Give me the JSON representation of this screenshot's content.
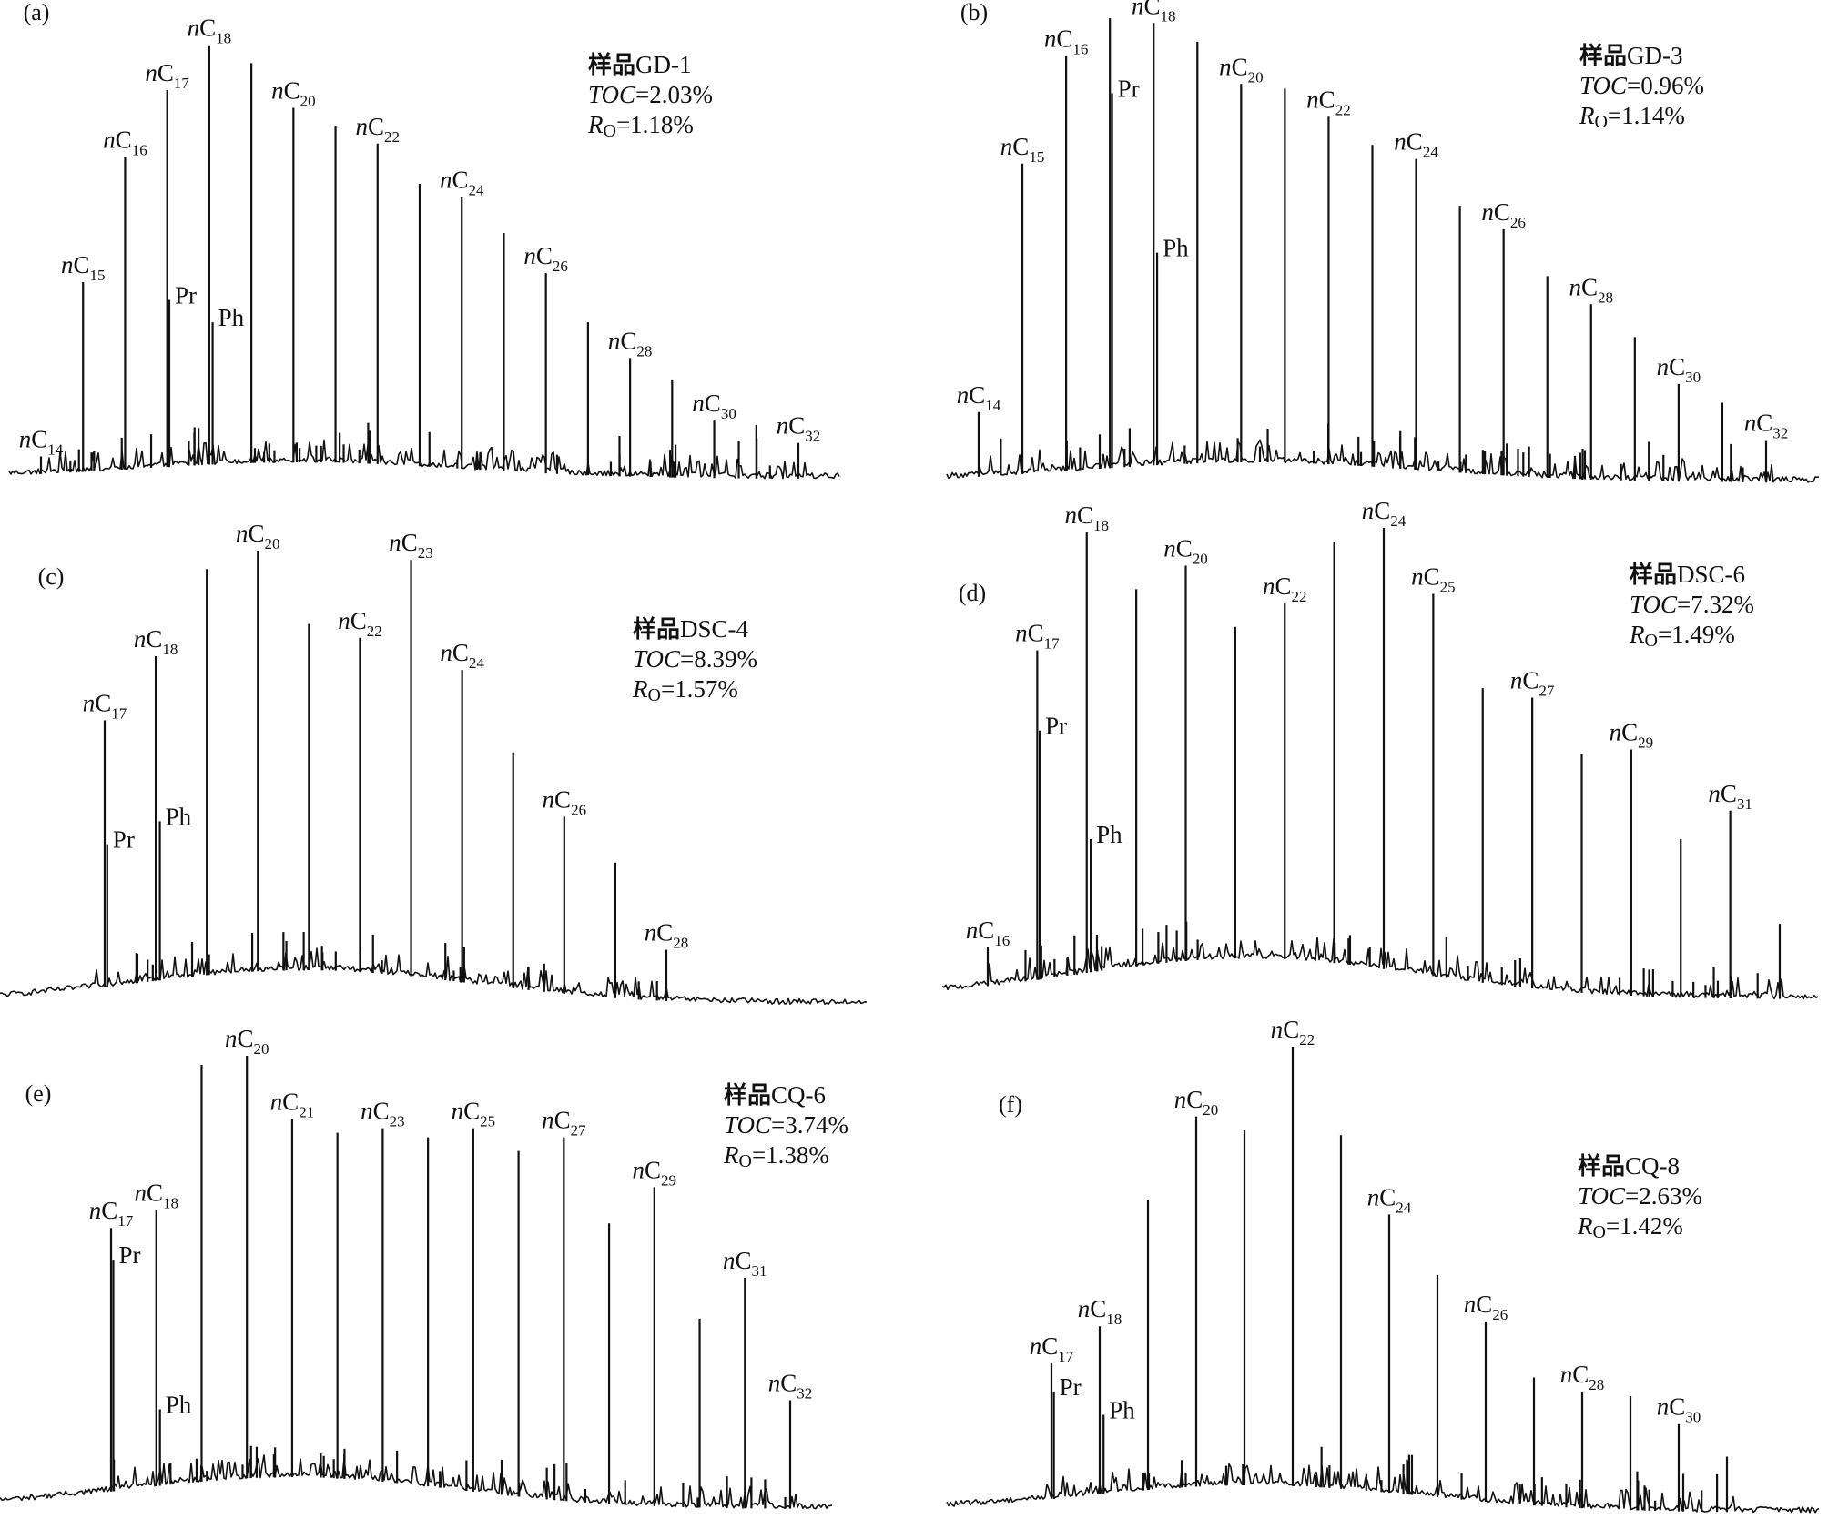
{
  "chart_data": [
    {
      "type": "line",
      "panel_label": "(a)",
      "sample_label": "样品GD-1",
      "toc_label": "TOC",
      "toc_value": "=2.03%",
      "ro_label": "R",
      "ro_sub": "O",
      "ro_value": "=1.18%",
      "peaks": [
        {
          "name": "nC14",
          "height": 0.05,
          "label": true
        },
        {
          "name": "nC15",
          "height": 0.44,
          "label": true
        },
        {
          "name": "nC16",
          "height": 0.72,
          "label": true
        },
        {
          "name": "nC17",
          "height": 0.87,
          "label": true
        },
        {
          "name": "nC18",
          "height": 0.97,
          "label": true
        },
        {
          "name": "nC19",
          "height": 0.93,
          "label": false
        },
        {
          "name": "nC20",
          "height": 0.83,
          "label": true
        },
        {
          "name": "nC21",
          "height": 0.79,
          "label": false
        },
        {
          "name": "nC22",
          "height": 0.75,
          "label": true
        },
        {
          "name": "nC23",
          "height": 0.66,
          "label": false
        },
        {
          "name": "nC24",
          "height": 0.63,
          "label": true
        },
        {
          "name": "nC25",
          "height": 0.55,
          "label": false
        },
        {
          "name": "nC26",
          "height": 0.46,
          "label": true
        },
        {
          "name": "nC27",
          "height": 0.35,
          "label": false
        },
        {
          "name": "nC28",
          "height": 0.27,
          "label": true
        },
        {
          "name": "nC29",
          "height": 0.22,
          "label": false
        },
        {
          "name": "nC30",
          "height": 0.13,
          "label": true
        },
        {
          "name": "nC31",
          "height": 0.12,
          "label": false
        },
        {
          "name": "nC32",
          "height": 0.08,
          "label": true
        }
      ],
      "biomarkers": [
        {
          "name": "Pr",
          "height": 0.4
        },
        {
          "name": "Ph",
          "height": 0.35
        }
      ]
    },
    {
      "type": "line",
      "panel_label": "(b)",
      "sample_label": "样品GD-3",
      "toc_label": "TOC",
      "toc_value": "=0.96%",
      "ro_label": "R",
      "ro_sub": "O",
      "ro_value": "=1.14%",
      "peaks": [
        {
          "name": "nC14",
          "height": 0.15,
          "label": true
        },
        {
          "name": "nC15",
          "height": 0.68,
          "label": true
        },
        {
          "name": "nC16",
          "height": 0.91,
          "label": true
        },
        {
          "name": "nC17",
          "height": 0.99,
          "label": false
        },
        {
          "name": "nC18",
          "height": 0.98,
          "label": true
        },
        {
          "name": "nC19",
          "height": 0.94,
          "label": false
        },
        {
          "name": "nC20",
          "height": 0.85,
          "label": true
        },
        {
          "name": "nC21",
          "height": 0.84,
          "label": false
        },
        {
          "name": "nC22",
          "height": 0.78,
          "label": true
        },
        {
          "name": "nC23",
          "height": 0.72,
          "label": false
        },
        {
          "name": "nC24",
          "height": 0.69,
          "label": true
        },
        {
          "name": "nC25",
          "height": 0.59,
          "label": false
        },
        {
          "name": "nC26",
          "height": 0.54,
          "label": true
        },
        {
          "name": "nC27",
          "height": 0.44,
          "label": false
        },
        {
          "name": "nC28",
          "height": 0.38,
          "label": true
        },
        {
          "name": "nC29",
          "height": 0.31,
          "label": false
        },
        {
          "name": "nC30",
          "height": 0.21,
          "label": true
        },
        {
          "name": "nC31",
          "height": 0.17,
          "label": false
        },
        {
          "name": "nC32",
          "height": 0.09,
          "label": true
        }
      ],
      "biomarkers": [
        {
          "name": "Pr",
          "height": 0.83
        },
        {
          "name": "Ph",
          "height": 0.49
        }
      ]
    },
    {
      "type": "line",
      "panel_label": "(c)",
      "sample_label": "样品DSC-4",
      "toc_label": "TOC",
      "toc_value": "=8.39%",
      "ro_label": "R",
      "ro_sub": "O",
      "ro_value": "=1.57%",
      "peaks": [
        {
          "name": "nC17",
          "height": 0.62,
          "label": true
        },
        {
          "name": "nC18",
          "height": 0.76,
          "label": true
        },
        {
          "name": "nC19",
          "height": 0.95,
          "label": false
        },
        {
          "name": "nC20",
          "height": 0.99,
          "label": true
        },
        {
          "name": "nC21",
          "height": 0.83,
          "label": false
        },
        {
          "name": "nC22",
          "height": 0.8,
          "label": true
        },
        {
          "name": "nC23",
          "height": 0.97,
          "label": true
        },
        {
          "name": "nC24",
          "height": 0.73,
          "label": true
        },
        {
          "name": "nC25",
          "height": 0.55,
          "label": false
        },
        {
          "name": "nC26",
          "height": 0.41,
          "label": true
        },
        {
          "name": "nC27",
          "height": 0.31,
          "label": false
        },
        {
          "name": "nC28",
          "height": 0.12,
          "label": true
        }
      ],
      "biomarkers": [
        {
          "name": "Pr",
          "height": 0.35
        },
        {
          "name": "Ph",
          "height": 0.4
        }
      ]
    },
    {
      "type": "line",
      "panel_label": "(d)",
      "sample_label": "样品DSC-6",
      "toc_label": "TOC",
      "toc_value": "=7.32%",
      "ro_label": "R",
      "ro_sub": "O",
      "ro_value": "=1.49%",
      "peaks": [
        {
          "name": "nC16",
          "height": 0.11,
          "label": true
        },
        {
          "name": "nC17",
          "height": 0.74,
          "label": true
        },
        {
          "name": "nC18",
          "height": 0.99,
          "label": true
        },
        {
          "name": "nC19",
          "height": 0.87,
          "label": false
        },
        {
          "name": "nC20",
          "height": 0.92,
          "label": true
        },
        {
          "name": "nC21",
          "height": 0.79,
          "label": false
        },
        {
          "name": "nC22",
          "height": 0.84,
          "label": true
        },
        {
          "name": "nC23",
          "height": 0.97,
          "label": false
        },
        {
          "name": "nC24",
          "height": 1.0,
          "label": true
        },
        {
          "name": "nC25",
          "height": 0.86,
          "label": true
        },
        {
          "name": "nC26",
          "height": 0.66,
          "label": false
        },
        {
          "name": "nC27",
          "height": 0.64,
          "label": true
        },
        {
          "name": "nC28",
          "height": 0.52,
          "label": false
        },
        {
          "name": "nC29",
          "height": 0.53,
          "label": true
        },
        {
          "name": "nC30",
          "height": 0.34,
          "label": false
        },
        {
          "name": "nC31",
          "height": 0.4,
          "label": true
        },
        {
          "name": "nC32",
          "height": 0.16,
          "label": false
        }
      ],
      "biomarkers": [
        {
          "name": "Pr",
          "height": 0.57
        },
        {
          "name": "Ph",
          "height": 0.34
        }
      ]
    },
    {
      "type": "line",
      "panel_label": "(e)",
      "sample_label": "样品CQ-6",
      "toc_label": "TOC",
      "toc_value": "=3.74%",
      "ro_label": "R",
      "ro_sub": "O",
      "ro_value": "=1.38%",
      "peaks": [
        {
          "name": "nC17",
          "height": 0.62,
          "label": true
        },
        {
          "name": "nC18",
          "height": 0.66,
          "label": true
        },
        {
          "name": "nC19",
          "height": 0.98,
          "label": false
        },
        {
          "name": "nC20",
          "height": 1.0,
          "label": true
        },
        {
          "name": "nC21",
          "height": 0.86,
          "label": true
        },
        {
          "name": "nC22",
          "height": 0.83,
          "label": false
        },
        {
          "name": "nC23",
          "height": 0.84,
          "label": true
        },
        {
          "name": "nC24",
          "height": 0.82,
          "label": false
        },
        {
          "name": "nC25",
          "height": 0.84,
          "label": true
        },
        {
          "name": "nC26",
          "height": 0.79,
          "label": false
        },
        {
          "name": "nC27",
          "height": 0.82,
          "label": true
        },
        {
          "name": "nC28",
          "height": 0.63,
          "label": false
        },
        {
          "name": "nC29",
          "height": 0.71,
          "label": true
        },
        {
          "name": "nC30",
          "height": 0.42,
          "label": false
        },
        {
          "name": "nC31",
          "height": 0.51,
          "label": true
        },
        {
          "name": "nC32",
          "height": 0.24,
          "label": true
        }
      ],
      "biomarkers": [
        {
          "name": "Pr",
          "height": 0.55
        },
        {
          "name": "Ph",
          "height": 0.22
        }
      ]
    },
    {
      "type": "line",
      "panel_label": "(f)",
      "sample_label": "样品CQ-8",
      "toc_label": "TOC",
      "toc_value": "=2.63%",
      "ro_label": "R",
      "ro_sub": "O",
      "ro_value": "=1.42%",
      "peaks": [
        {
          "name": "nC17",
          "height": 0.32,
          "label": true
        },
        {
          "name": "nC18",
          "height": 0.4,
          "label": true
        },
        {
          "name": "nC19",
          "height": 0.67,
          "label": false
        },
        {
          "name": "nC20",
          "height": 0.85,
          "label": true
        },
        {
          "name": "nC21",
          "height": 0.82,
          "label": false
        },
        {
          "name": "nC22",
          "height": 1.0,
          "label": true
        },
        {
          "name": "nC23",
          "height": 0.81,
          "label": false
        },
        {
          "name": "nC24",
          "height": 0.64,
          "label": true
        },
        {
          "name": "nC25",
          "height": 0.51,
          "label": false
        },
        {
          "name": "nC26",
          "height": 0.41,
          "label": true
        },
        {
          "name": "nC27",
          "height": 0.29,
          "label": false
        },
        {
          "name": "nC28",
          "height": 0.26,
          "label": true
        },
        {
          "name": "nC29",
          "height": 0.25,
          "label": false
        },
        {
          "name": "nC30",
          "height": 0.19,
          "label": true
        },
        {
          "name": "nC31",
          "height": 0.12,
          "label": false
        }
      ],
      "biomarkers": [
        {
          "name": "Pr",
          "height": 0.26
        },
        {
          "name": "Ph",
          "height": 0.21
        }
      ]
    }
  ]
}
